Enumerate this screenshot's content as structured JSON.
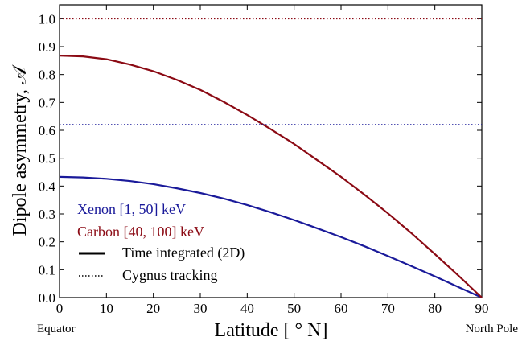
{
  "chart_data": {
    "type": "line",
    "xlabel": "Latitude [ ° N]",
    "ylabel": "Dipole asymmetry, 𝒜",
    "xlim": [
      0,
      90
    ],
    "ylim": [
      0.0,
      1.05
    ],
    "xticks": [
      "0",
      "10",
      "20",
      "30",
      "40",
      "50",
      "60",
      "70",
      "80",
      "90"
    ],
    "yticks": [
      "0.0",
      "0.1",
      "0.2",
      "0.3",
      "0.4",
      "0.5",
      "0.6",
      "0.7",
      "0.8",
      "0.9",
      "1.0"
    ],
    "xtick_values": [
      0,
      10,
      20,
      30,
      40,
      50,
      60,
      70,
      80,
      90
    ],
    "ytick_values": [
      0.0,
      0.1,
      0.2,
      0.3,
      0.4,
      0.5,
      0.6,
      0.7,
      0.8,
      0.9,
      1.0
    ],
    "annotations": {
      "left": "Equator",
      "right": "North Pole"
    },
    "grid": false,
    "legend_placement": "lower-left",
    "series": [
      {
        "name": "Xenon [1, 50] keV",
        "style": "solid",
        "color": "#1a1a9a",
        "x": [
          0,
          5,
          10,
          15,
          20,
          25,
          30,
          35,
          40,
          45,
          50,
          55,
          60,
          65,
          70,
          75,
          80,
          85,
          90
        ],
        "y": [
          0.433,
          0.431,
          0.426,
          0.418,
          0.407,
          0.392,
          0.375,
          0.355,
          0.332,
          0.306,
          0.278,
          0.248,
          0.217,
          0.184,
          0.149,
          0.113,
          0.076,
          0.038,
          0.0
        ]
      },
      {
        "name": "Carbon [40, 100] keV",
        "style": "solid",
        "color": "#8b0a14",
        "x": [
          0,
          5,
          10,
          15,
          20,
          25,
          30,
          35,
          40,
          45,
          50,
          55,
          60,
          65,
          70,
          75,
          80,
          85,
          90
        ],
        "y": [
          0.868,
          0.865,
          0.855,
          0.836,
          0.812,
          0.781,
          0.745,
          0.702,
          0.655,
          0.604,
          0.551,
          0.492,
          0.433,
          0.369,
          0.302,
          0.231,
          0.156,
          0.079,
          0.0
        ]
      },
      {
        "name": "Xenon Cygnus tracking",
        "style": "dotted",
        "color": "#1a1a9a",
        "x": [
          0,
          90
        ],
        "y": [
          0.62,
          0.62
        ]
      },
      {
        "name": "Carbon Cygnus tracking",
        "style": "dotted",
        "color": "#8b0a14",
        "x": [
          0,
          90
        ],
        "y": [
          1.0,
          1.0
        ]
      }
    ],
    "legend": {
      "entries": [
        {
          "label": "Xenon [1, 50] keV",
          "color": "#1a1a9a"
        },
        {
          "label": "Carbon [40, 100] keV",
          "color": "#8b0a14"
        },
        {
          "label": "Time integrated (2D)",
          "line": "solid",
          "color": "#000000"
        },
        {
          "label": "Cygnus tracking",
          "line": "dotted",
          "color": "#000000"
        }
      ]
    }
  }
}
